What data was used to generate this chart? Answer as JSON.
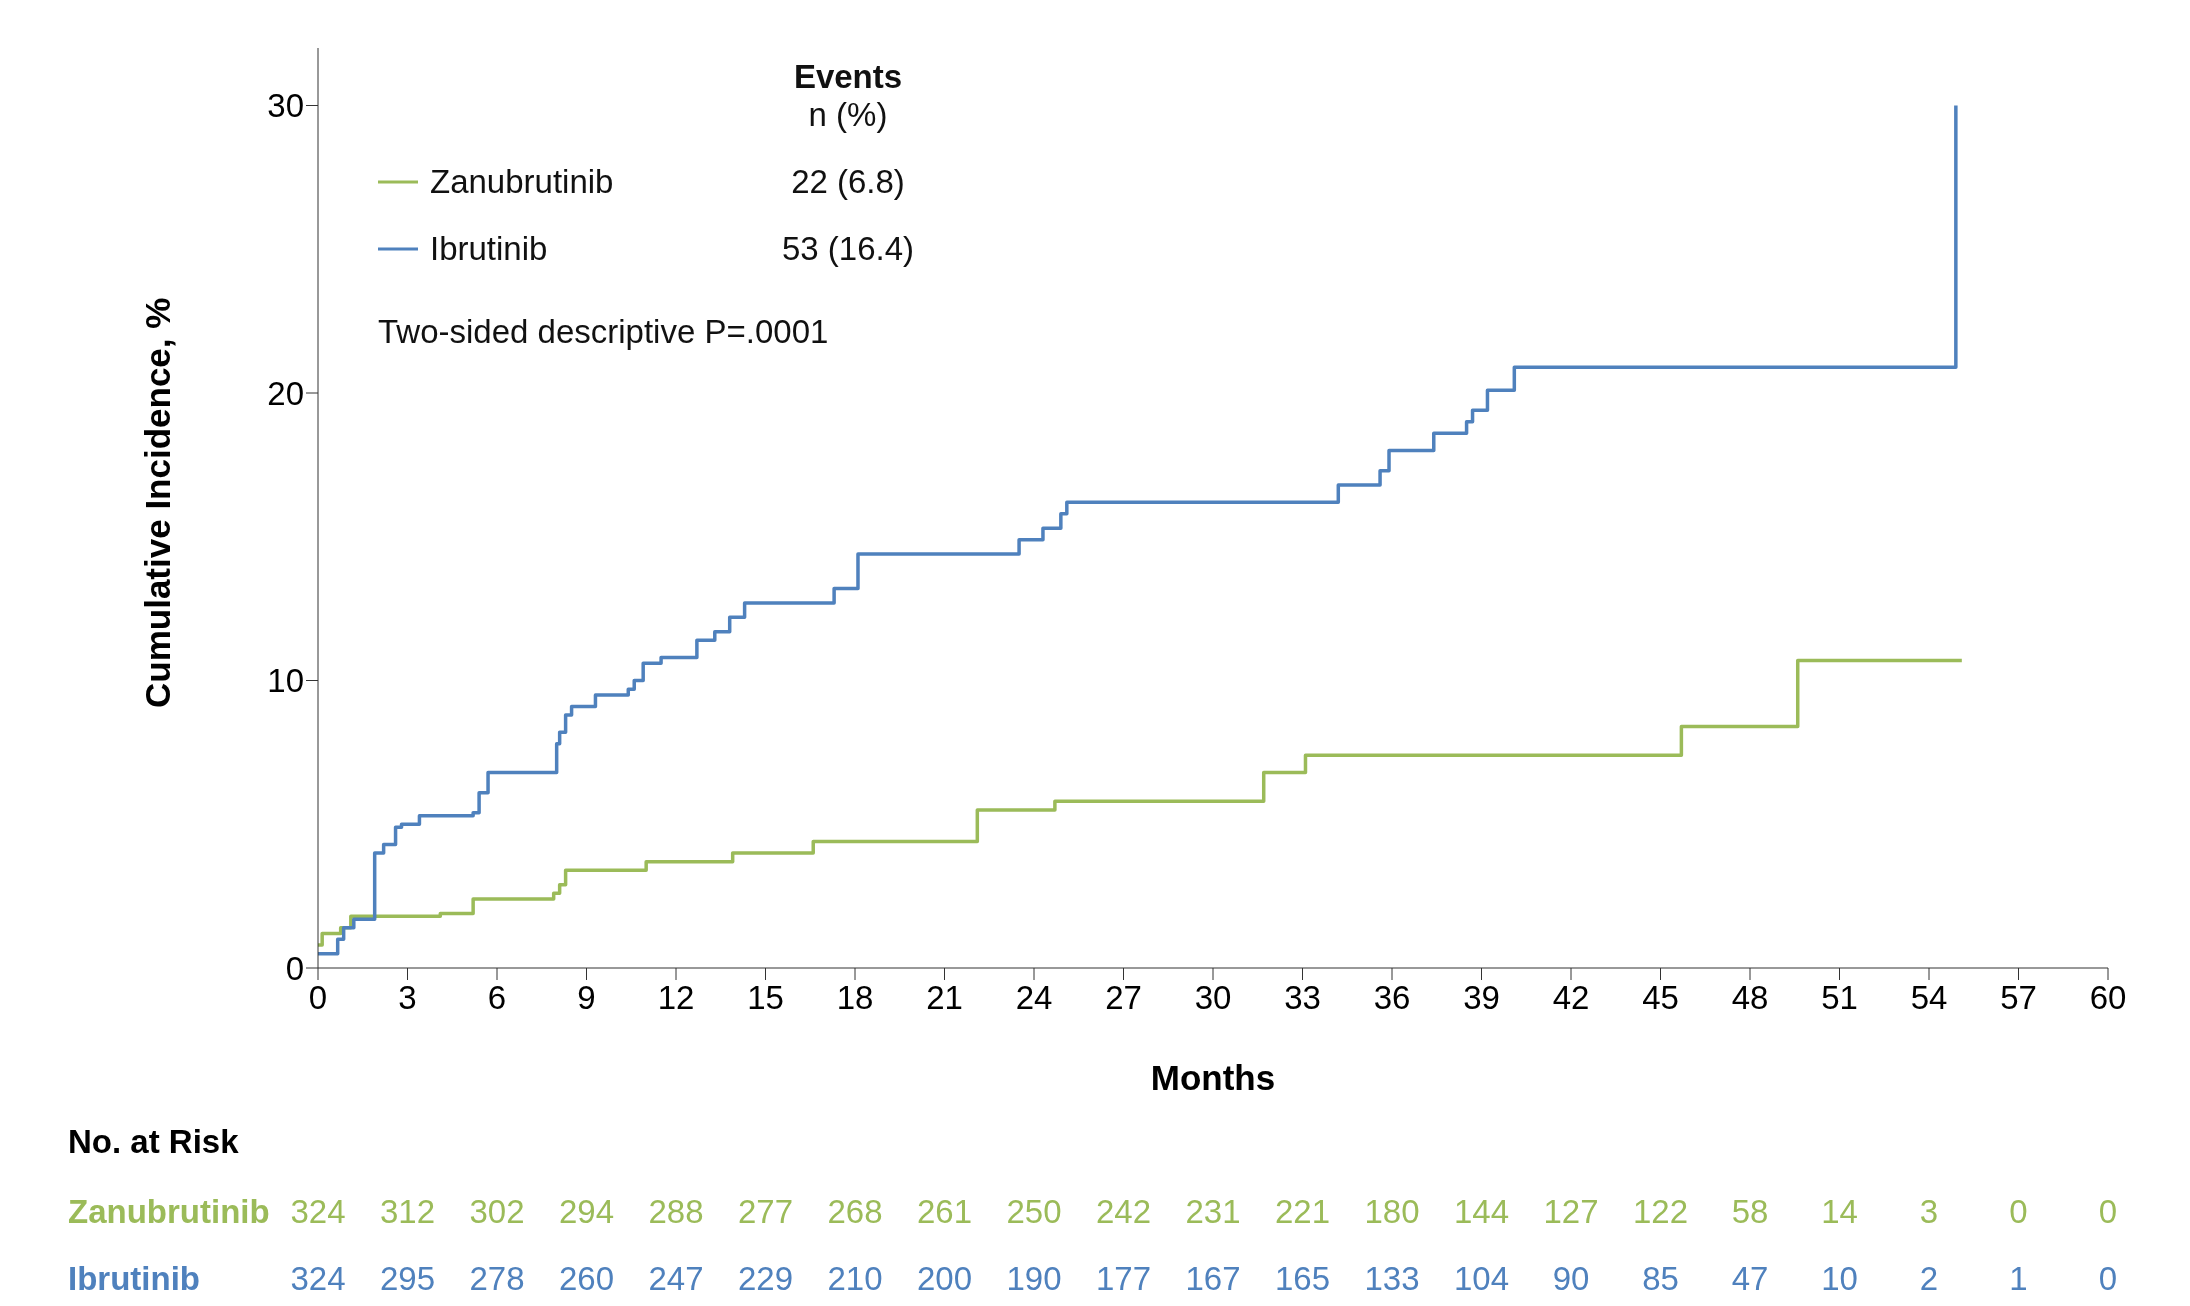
{
  "chart_data": {
    "type": "step",
    "xlabel": "Months",
    "ylabel": "Cumulative Incidence, %",
    "xlim": [
      0,
      60
    ],
    "xticks": [
      0,
      3,
      6,
      9,
      12,
      15,
      18,
      21,
      24,
      27,
      30,
      33,
      36,
      39,
      42,
      45,
      48,
      51,
      54,
      57,
      60
    ],
    "ylim": [
      0,
      32
    ],
    "yticks": [
      0,
      10,
      20,
      30
    ],
    "legend": "top left",
    "line_style": "solid",
    "series": [
      {
        "name": "Zanubrutinib",
        "color": "#9bbb59",
        "x": [
          0,
          0.14,
          0.76,
          1.1,
          4.1,
          5.2,
          7.9,
          8.1,
          8.3,
          11,
          13.9,
          16.6,
          22.1,
          24.7,
          31.7,
          33.1,
          45.7,
          49.6,
          55.1
        ],
        "values": [
          0.8,
          1.2,
          1.4,
          1.8,
          1.9,
          2.4,
          2.6,
          2.9,
          3.4,
          3.7,
          4,
          4.4,
          5.5,
          5.8,
          6.8,
          7.4,
          8.4,
          10.7,
          10.7
        ]
      },
      {
        "name": "Ibrutinib",
        "color": "#4f81bd",
        "x": [
          0,
          0.66,
          0.86,
          1.2,
          1.9,
          2.2,
          2.6,
          2.8,
          3.4,
          5.2,
          5.4,
          5.7,
          8,
          8.1,
          8.3,
          8.5,
          9.3,
          10.4,
          10.6,
          10.9,
          11.5,
          12.7,
          13.3,
          13.8,
          14.3,
          17.3,
          18.1,
          23.5,
          24.3,
          24.9,
          25.1,
          34.2,
          35.6,
          35.9,
          37.4,
          38.5,
          38.7,
          39.2,
          40.1,
          54.9,
          54.9
        ],
        "values": [
          0.5,
          1,
          1.4,
          1.7,
          4,
          4.3,
          4.9,
          5,
          5.3,
          5.4,
          6.1,
          6.8,
          7.8,
          8.2,
          8.8,
          9.1,
          9.5,
          9.7,
          10,
          10.6,
          10.8,
          11.4,
          11.7,
          12.2,
          12.7,
          13.2,
          14.4,
          14.9,
          15.3,
          15.8,
          16.2,
          16.8,
          17.3,
          18,
          18.6,
          19,
          19.4,
          20.1,
          20.9,
          20.9,
          30
        ]
      }
    ],
    "annotations": [
      "Events",
      "n (%)",
      "22 (6.8)",
      "53 (16.4)",
      "Two-sided descriptive P=.0001",
      "No. at Risk",
      "324 312 302 294 288 277 268 261 250 242 231 221 180 144 127 122 58 14 3 0 0",
      "324 295 278 260 247 229 210 200 190 177 167 165 133 104 90 85 47 10 2 1 0"
    ]
  }
}
